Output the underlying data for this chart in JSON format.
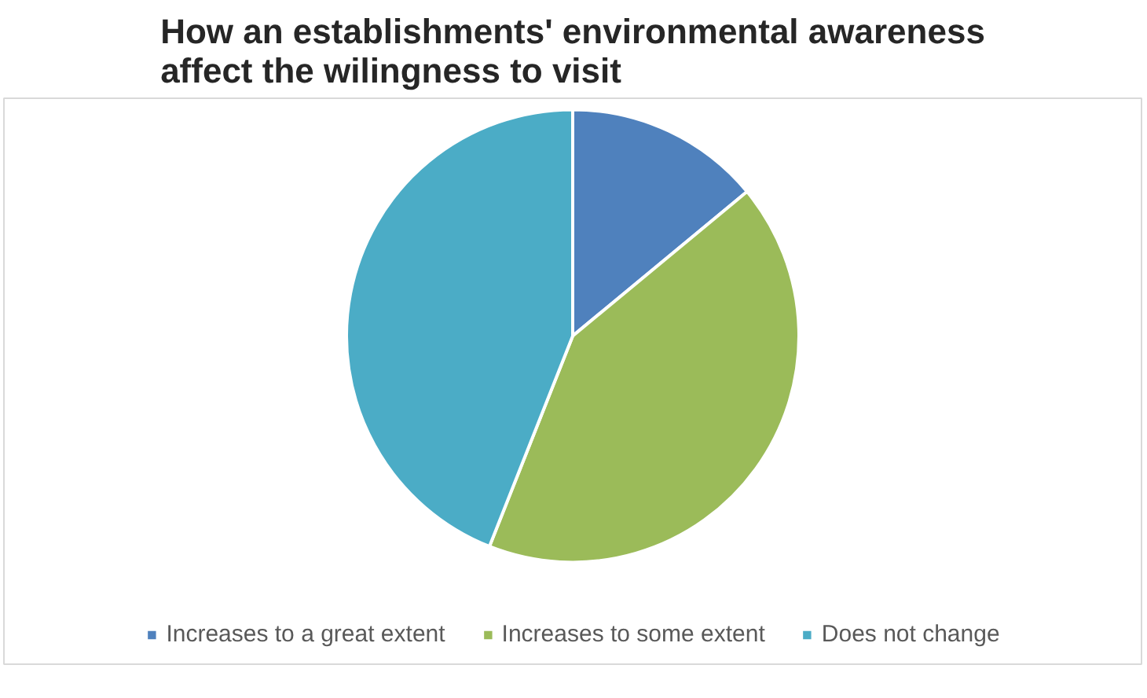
{
  "chart_data": {
    "type": "pie",
    "title": "How an establishments' environmental awareness affect the wilingness to visit",
    "categories": [
      "Increases to a great extent",
      "Increases to some extent",
      "Does not change"
    ],
    "values": [
      14,
      42,
      44
    ],
    "colors": [
      "#4f81bd",
      "#9bbb59",
      "#4bacc6"
    ],
    "legend": "bottom"
  }
}
